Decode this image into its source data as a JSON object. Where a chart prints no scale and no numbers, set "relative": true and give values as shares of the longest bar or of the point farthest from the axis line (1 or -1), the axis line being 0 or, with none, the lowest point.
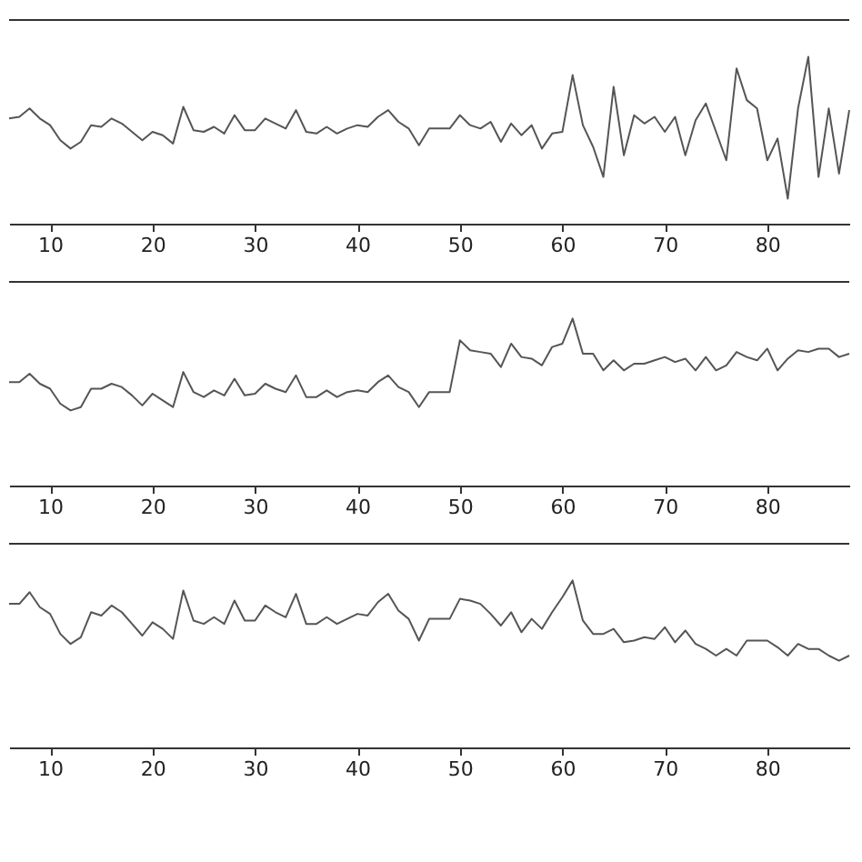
{
  "chart_data": [
    {
      "type": "line",
      "relative": true,
      "tick_labels": "x",
      "grid": false,
      "xlim": [
        6,
        88
      ],
      "xticks": [
        10,
        20,
        30,
        40,
        50,
        60,
        70,
        80
      ],
      "x": [
        6,
        7,
        8,
        9,
        10,
        11,
        12,
        13,
        14,
        15,
        16,
        17,
        18,
        19,
        20,
        21,
        22,
        23,
        24,
        25,
        26,
        27,
        28,
        29,
        30,
        31,
        32,
        33,
        34,
        35,
        36,
        37,
        38,
        39,
        40,
        41,
        42,
        43,
        44,
        45,
        46,
        47,
        48,
        49,
        50,
        51,
        52,
        53,
        54,
        55,
        56,
        57,
        58,
        59,
        60,
        61,
        62,
        63,
        64,
        65,
        66,
        67,
        68,
        69,
        70,
        71,
        72,
        73,
        74,
        75,
        76,
        77,
        78,
        79,
        80,
        81,
        82,
        83,
        84,
        85,
        86,
        87,
        88
      ],
      "series": [
        {
          "color": "#555555",
          "values": [
            0.63,
            0.64,
            0.69,
            0.63,
            0.59,
            0.5,
            0.45,
            0.49,
            0.59,
            0.58,
            0.63,
            0.6,
            0.55,
            0.5,
            0.55,
            0.53,
            0.48,
            0.7,
            0.56,
            0.55,
            0.58,
            0.54,
            0.65,
            0.56,
            0.56,
            0.63,
            0.6,
            0.57,
            0.68,
            0.55,
            0.54,
            0.58,
            0.54,
            0.57,
            0.59,
            0.58,
            0.64,
            0.68,
            0.61,
            0.57,
            0.47,
            0.57,
            0.57,
            0.57,
            0.65,
            0.59,
            0.57,
            0.61,
            0.49,
            0.6,
            0.53,
            0.59,
            0.45,
            0.54,
            0.55,
            0.89,
            0.59,
            0.46,
            0.28,
            0.82,
            0.41,
            0.65,
            0.6,
            0.64,
            0.55,
            0.64,
            0.41,
            0.62,
            0.72,
            0.55,
            0.38,
            0.93,
            0.74,
            0.69,
            0.38,
            0.51,
            0.15,
            0.69,
            1,
            0.28,
            0.69,
            0.3,
            0.68
          ]
        }
      ]
    },
    {
      "type": "line",
      "relative": true,
      "tick_labels": "x",
      "grid": false,
      "xlim": [
        6,
        88
      ],
      "xticks": [
        10,
        20,
        30,
        40,
        50,
        60,
        70,
        80
      ],
      "x": [
        6,
        7,
        8,
        9,
        10,
        11,
        12,
        13,
        14,
        15,
        16,
        17,
        18,
        19,
        20,
        21,
        22,
        23,
        24,
        25,
        26,
        27,
        28,
        29,
        30,
        31,
        32,
        33,
        34,
        35,
        36,
        37,
        38,
        39,
        40,
        41,
        42,
        43,
        44,
        45,
        46,
        47,
        48,
        49,
        50,
        51,
        52,
        53,
        54,
        55,
        56,
        57,
        58,
        59,
        60,
        61,
        62,
        63,
        64,
        65,
        66,
        67,
        68,
        69,
        70,
        71,
        72,
        73,
        74,
        75,
        76,
        77,
        78,
        79,
        80,
        81,
        82,
        83,
        84,
        85,
        86,
        87,
        88
      ],
      "series": [
        {
          "color": "#555555",
          "values": [
            0.62,
            0.62,
            0.67,
            0.61,
            0.58,
            0.49,
            0.45,
            0.47,
            0.58,
            0.58,
            0.61,
            0.59,
            0.54,
            0.48,
            0.55,
            0.51,
            0.47,
            0.68,
            0.56,
            0.53,
            0.57,
            0.54,
            0.64,
            0.54,
            0.55,
            0.61,
            0.58,
            0.56,
            0.66,
            0.53,
            0.53,
            0.57,
            0.53,
            0.56,
            0.57,
            0.56,
            0.62,
            0.66,
            0.59,
            0.56,
            0.47,
            0.56,
            0.56,
            0.56,
            0.87,
            0.81,
            0.8,
            0.79,
            0.71,
            0.85,
            0.77,
            0.76,
            0.72,
            0.83,
            0.85,
            1,
            0.79,
            0.79,
            0.69,
            0.75,
            0.69,
            0.73,
            0.73,
            0.75,
            0.77,
            0.74,
            0.76,
            0.69,
            0.77,
            0.69,
            0.72,
            0.8,
            0.77,
            0.75,
            0.82,
            0.69,
            0.76,
            0.81,
            0.8,
            0.82,
            0.82,
            0.77,
            0.79
          ]
        }
      ]
    },
    {
      "type": "line",
      "relative": true,
      "tick_labels": "x",
      "grid": false,
      "xlim": [
        6,
        88
      ],
      "xticks": [
        10,
        20,
        30,
        40,
        50,
        60,
        70,
        80
      ],
      "x": [
        6,
        7,
        8,
        9,
        10,
        11,
        12,
        13,
        14,
        15,
        16,
        17,
        18,
        19,
        20,
        21,
        22,
        23,
        24,
        25,
        26,
        27,
        28,
        29,
        30,
        31,
        32,
        33,
        34,
        35,
        36,
        37,
        38,
        39,
        40,
        41,
        42,
        43,
        44,
        45,
        46,
        47,
        48,
        49,
        50,
        51,
        52,
        53,
        54,
        55,
        56,
        57,
        58,
        59,
        60,
        61,
        62,
        63,
        64,
        65,
        66,
        67,
        68,
        69,
        70,
        71,
        72,
        73,
        74,
        75,
        76,
        77,
        78,
        79,
        80,
        81,
        82,
        83,
        84,
        85,
        86,
        87,
        88
      ],
      "series": [
        {
          "color": "#555555",
          "values": [
            0.86,
            0.86,
            0.93,
            0.84,
            0.8,
            0.68,
            0.62,
            0.66,
            0.81,
            0.79,
            0.85,
            0.81,
            0.74,
            0.67,
            0.75,
            0.71,
            0.65,
            0.94,
            0.76,
            0.74,
            0.78,
            0.74,
            0.88,
            0.76,
            0.76,
            0.85,
            0.81,
            0.78,
            0.92,
            0.74,
            0.74,
            0.78,
            0.74,
            0.77,
            0.8,
            0.79,
            0.87,
            0.92,
            0.82,
            0.77,
            0.64,
            0.77,
            0.77,
            0.77,
            0.89,
            0.88,
            0.86,
            0.8,
            0.73,
            0.81,
            0.69,
            0.77,
            0.71,
            0.81,
            0.9,
            1,
            0.76,
            0.68,
            0.68,
            0.71,
            0.63,
            0.64,
            0.66,
            0.65,
            0.72,
            0.63,
            0.7,
            0.62,
            0.59,
            0.55,
            0.59,
            0.55,
            0.64,
            0.64,
            0.64,
            0.6,
            0.55,
            0.62,
            0.59,
            0.59,
            0.55,
            0.52,
            0.55
          ]
        }
      ]
    }
  ]
}
